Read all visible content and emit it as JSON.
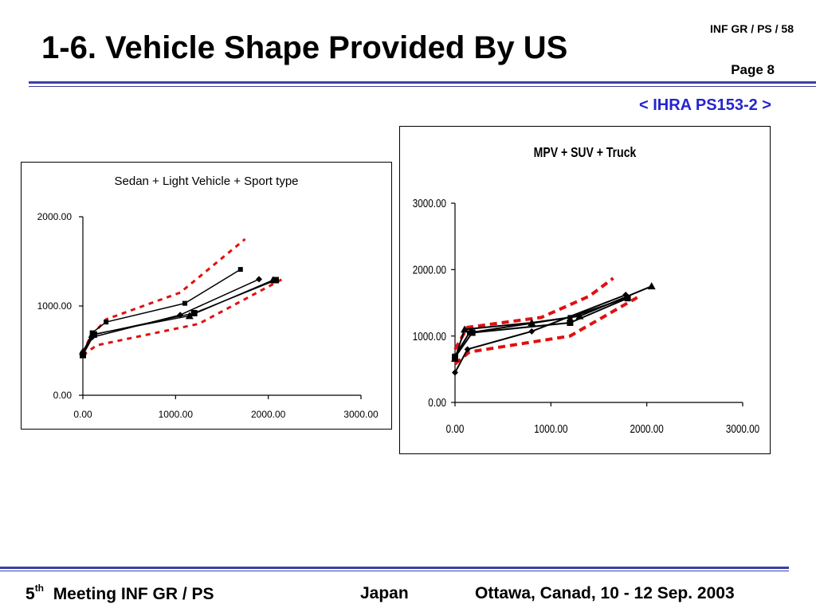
{
  "header": {
    "title": "1-6. Vehicle Shape Provided By US",
    "ref": "INF GR / PS / 58",
    "page": "Page 8",
    "doc_id": "< IHRA PS153-2 >"
  },
  "colors": {
    "accent_rule": "#3b3fa8",
    "doc_id": "#2424d0",
    "boundary": "#e01010",
    "series": "#000000"
  },
  "chart_data": [
    {
      "type": "line",
      "title": "Sedan + Light Vehicle + Sport type",
      "xlabel": "",
      "ylabel": "",
      "xlim": [
        0,
        3000
      ],
      "ylim": [
        0,
        2000
      ],
      "x_ticks": [
        "0.00",
        "1000.00",
        "2000.00",
        "3000.00"
      ],
      "y_ticks": [
        "0.00",
        "1000.00",
        "2000.00"
      ],
      "grid": false,
      "series": [
        {
          "marker": "square",
          "points": [
            [
              0,
              470
            ],
            [
              100,
              700
            ],
            [
              250,
              820
            ],
            [
              1100,
              1030
            ],
            [
              1700,
              1410
            ]
          ]
        },
        {
          "marker": "diamond",
          "points": [
            [
              0,
              480
            ],
            [
              100,
              650
            ],
            [
              1050,
              900
            ],
            [
              1900,
              1300
            ]
          ]
        },
        {
          "marker": "triangle",
          "points": [
            [
              0,
              490
            ],
            [
              100,
              680
            ],
            [
              1150,
              890
            ],
            [
              2050,
              1290
            ]
          ]
        },
        {
          "marker": "square-large",
          "points": [
            [
              0,
              450
            ],
            [
              120,
              680
            ],
            [
              1200,
              920
            ],
            [
              2080,
              1290
            ]
          ]
        }
      ],
      "boundaries": [
        {
          "style": "dashed",
          "points": [
            [
              0,
              480
            ],
            [
              80,
              650
            ],
            [
              250,
              850
            ],
            [
              1050,
              1150
            ],
            [
              1750,
              1750
            ]
          ]
        },
        {
          "style": "dashed",
          "points": [
            [
              0,
              450
            ],
            [
              150,
              560
            ],
            [
              1250,
              800
            ],
            [
              2150,
              1300
            ]
          ]
        }
      ]
    },
    {
      "type": "line",
      "title": "MPV + SUV + Truck",
      "xlabel": "",
      "ylabel": "",
      "xlim": [
        0,
        3000
      ],
      "ylim": [
        0,
        3000
      ],
      "x_ticks": [
        "0.00",
        "1000.00",
        "2000.00",
        "3000.00"
      ],
      "y_ticks": [
        "0.00",
        "1000.00",
        "2000.00",
        "3000.00"
      ],
      "grid": false,
      "series": [
        {
          "marker": "triangle",
          "points": [
            [
              0,
              660
            ],
            [
              100,
              1100
            ],
            [
              800,
              1200
            ],
            [
              1300,
              1300
            ],
            [
              2050,
              1750
            ]
          ]
        },
        {
          "marker": "diamond",
          "points": [
            [
              0,
              450
            ],
            [
              130,
              800
            ],
            [
              800,
              1070
            ],
            [
              1780,
              1620
            ]
          ]
        },
        {
          "marker": "square",
          "points": [
            [
              0,
              700
            ],
            [
              150,
              1050
            ],
            [
              1200,
              1280
            ],
            [
              1800,
              1580
            ]
          ]
        },
        {
          "marker": "square-large",
          "points": [
            [
              0,
              680
            ],
            [
              180,
              1050
            ],
            [
              1200,
              1200
            ],
            [
              1800,
              1570
            ]
          ]
        }
      ],
      "boundaries": [
        {
          "style": "dashed",
          "points": [
            [
              0,
              800
            ],
            [
              130,
              1130
            ],
            [
              900,
              1280
            ],
            [
              1400,
              1600
            ],
            [
              1650,
              1870
            ]
          ]
        },
        {
          "style": "dashed",
          "points": [
            [
              0,
              580
            ],
            [
              150,
              760
            ],
            [
              1200,
              1000
            ],
            [
              1900,
              1580
            ]
          ]
        }
      ]
    }
  ],
  "footer": {
    "meeting_num": "5",
    "meeting_sup": "th",
    "meeting_rest": "Meeting INF GR / PS",
    "country": "Japan",
    "location": "Ottawa, Canad, 10 - 12 Sep. 2003"
  }
}
